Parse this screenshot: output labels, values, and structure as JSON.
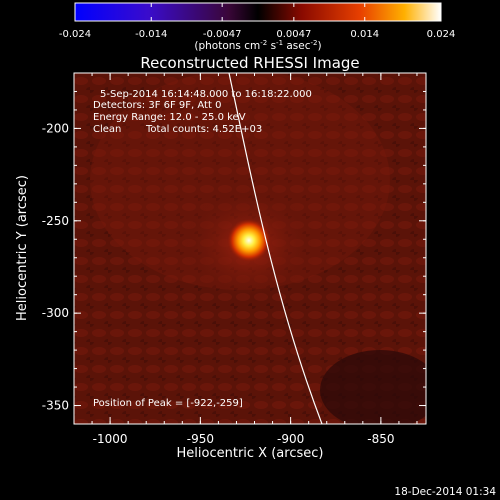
{
  "colorbar": {
    "ticks": [
      "-0.024",
      "-0.014",
      "-0.0047",
      "0.0047",
      "0.014",
      "0.024"
    ],
    "tick_values": [
      -0.024,
      -0.014,
      -0.0047,
      0.0047,
      0.014,
      0.024
    ],
    "range": [
      -0.024,
      0.024
    ],
    "units_prefix": "(photons cm",
    "units_exp1": "-2",
    "units_mid": " s",
    "units_exp2": "-1",
    "units_mid2": " asec",
    "units_exp3": "-2",
    "units_suffix": ")"
  },
  "title": "Reconstructed RHESSI Image",
  "info": {
    "time_range": "5-Sep-2014 16:14:48.000 to 16:18:22.000",
    "detectors": "Detectors: 3F 6F 9F, Att 0",
    "energy_range": "Energy Range: 12.0 - 25.0 keV",
    "clean_label": "Clean",
    "total_counts": "Total counts: 4.52E+03"
  },
  "peak_label": "Position of Peak = [-922,-259]",
  "peak_position": [
    -922,
    -259
  ],
  "x_axis": {
    "label": "Heliocentric X (arcsec)",
    "range": [
      -1020,
      -825
    ],
    "ticks": [
      "-1000",
      "-950",
      "-900",
      "-850"
    ],
    "tick_values": [
      -1000,
      -950,
      -900,
      -850
    ]
  },
  "y_axis": {
    "label": "Heliocentric Y (arcsec)",
    "range": [
      -360,
      -170
    ],
    "ticks": [
      "-200",
      "-250",
      "-300",
      "-350"
    ],
    "tick_values": [
      -200,
      -250,
      -300,
      -350
    ]
  },
  "footer_timestamp": "18-Dec-2014 01:34",
  "colors": {
    "background": "#000000",
    "image_base": "#5a1208",
    "peak_core": "#ffffe0",
    "limb_line": "#ffffff"
  }
}
